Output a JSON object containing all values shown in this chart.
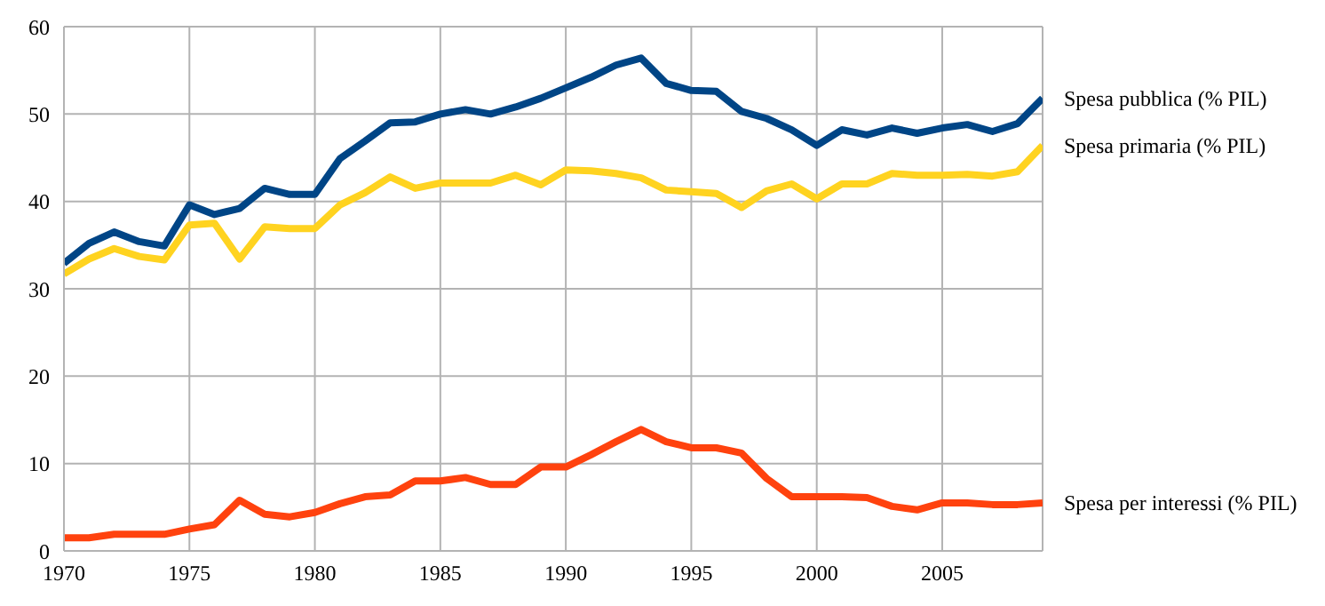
{
  "chart_data": {
    "type": "line",
    "x": [
      1970,
      1971,
      1972,
      1973,
      1974,
      1975,
      1976,
      1977,
      1978,
      1979,
      1980,
      1981,
      1982,
      1983,
      1984,
      1985,
      1986,
      1987,
      1988,
      1989,
      1990,
      1991,
      1992,
      1993,
      1994,
      1995,
      1996,
      1997,
      1998,
      1999,
      2000,
      2001,
      2002,
      2003,
      2004,
      2005,
      2006,
      2007,
      2008,
      2009
    ],
    "series": [
      {
        "name": "Spesa pubblica (% PIL)",
        "color": "#004586",
        "values": [
          32.9,
          35.2,
          36.5,
          35.4,
          34.9,
          39.6,
          38.5,
          39.2,
          41.5,
          40.8,
          40.8,
          44.9,
          46.9,
          49.0,
          49.1,
          50.0,
          50.5,
          50.0,
          50.8,
          51.8,
          53.0,
          54.2,
          55.6,
          56.4,
          53.5,
          52.7,
          52.6,
          50.3,
          49.5,
          48.2,
          46.4,
          48.2,
          47.6,
          48.4,
          47.8,
          48.4,
          48.8,
          48.0,
          48.9,
          51.8
        ]
      },
      {
        "name": "Spesa primaria (% PIL)",
        "color": "#ffd320",
        "values": [
          31.7,
          33.4,
          34.6,
          33.7,
          33.3,
          37.3,
          37.5,
          33.4,
          37.1,
          36.9,
          36.9,
          39.6,
          41.0,
          42.8,
          41.5,
          42.1,
          42.1,
          42.1,
          43.0,
          41.9,
          43.6,
          43.5,
          43.2,
          42.7,
          41.3,
          41.1,
          40.9,
          39.3,
          41.2,
          42.0,
          40.3,
          42.0,
          42.0,
          43.2,
          43.0,
          43.0,
          43.1,
          42.9,
          43.4,
          46.4
        ]
      },
      {
        "name": "Spesa per interessi (% PIL)",
        "color": "#ff420e",
        "values": [
          1.5,
          1.5,
          1.9,
          1.9,
          1.9,
          2.5,
          3.0,
          5.8,
          4.2,
          3.9,
          4.4,
          5.4,
          6.2,
          6.4,
          8.0,
          8.0,
          8.4,
          7.6,
          7.6,
          9.6,
          9.6,
          11.0,
          12.5,
          13.9,
          12.5,
          11.8,
          11.8,
          11.2,
          8.3,
          6.2,
          6.2,
          6.2,
          6.1,
          5.1,
          4.7,
          5.5,
          5.5,
          5.3,
          5.3,
          5.5
        ]
      }
    ],
    "xlim": [
      1970,
      2009
    ],
    "xticks": [
      1970,
      1975,
      1980,
      1985,
      1990,
      1995,
      2000,
      2005
    ],
    "ylim": [
      0,
      60
    ],
    "yticks": [
      0,
      10,
      20,
      30,
      40,
      50,
      60
    ],
    "grid": true,
    "marker": "none",
    "line_style": "solid"
  }
}
